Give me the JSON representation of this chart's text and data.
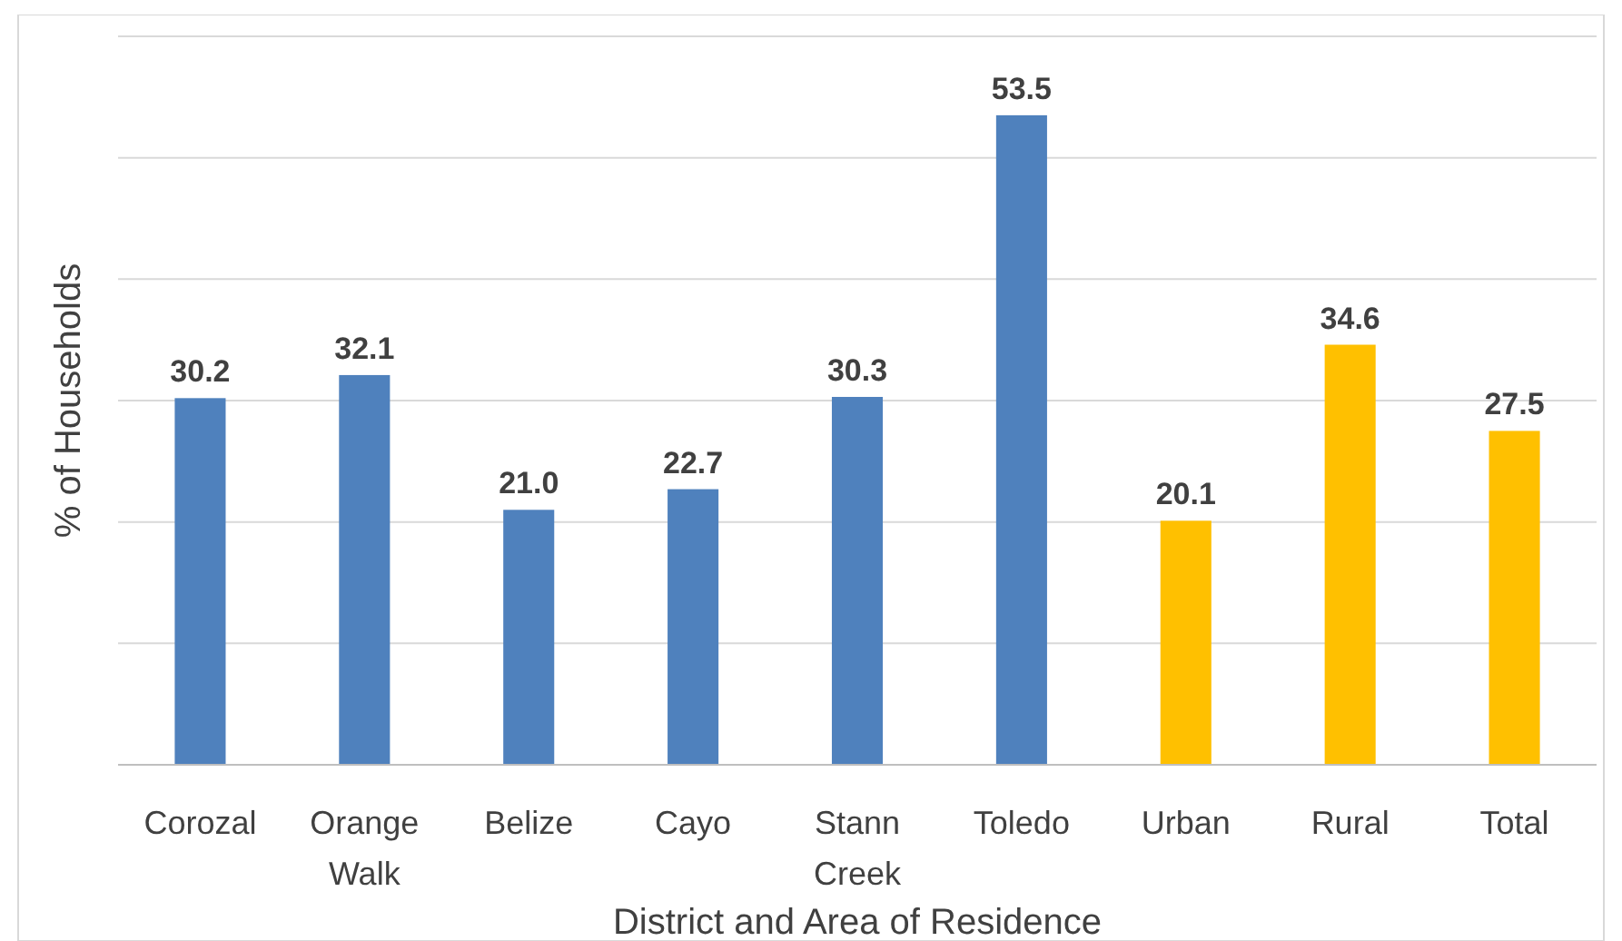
{
  "chart_data": {
    "type": "bar",
    "xlabel": "District and Area of Residence",
    "ylabel": "% of Households",
    "categories": [
      "Corozal",
      "Orange Walk",
      "Belize",
      "Cayo",
      "Stann Creek",
      "Toledo",
      "Urban",
      "Rural",
      "Total"
    ],
    "values": [
      30.2,
      32.1,
      21.0,
      22.7,
      30.3,
      53.5,
      20.1,
      34.6,
      27.5
    ],
    "colors": [
      "#4f81bd",
      "#4f81bd",
      "#4f81bd",
      "#4f81bd",
      "#4f81bd",
      "#4f81bd",
      "#ffc000",
      "#ffc000",
      "#ffc000"
    ],
    "value_labels": [
      "30.2",
      "32.1",
      "21.0",
      "22.7",
      "30.3",
      "53.5",
      "20.1",
      "34.6",
      "27.5"
    ],
    "ylim": [
      0,
      60
    ],
    "yticks": [
      {
        "value": 0,
        "label": null
      },
      {
        "value": 10,
        "label": null
      },
      {
        "value": 20,
        "label": null
      },
      {
        "value": 30,
        "label": null
      },
      {
        "value": 40,
        "label": null
      },
      {
        "value": 50,
        "label": null
      },
      {
        "value": 60,
        "label": null
      }
    ],
    "tick_labels": "x",
    "grid": "y"
  }
}
